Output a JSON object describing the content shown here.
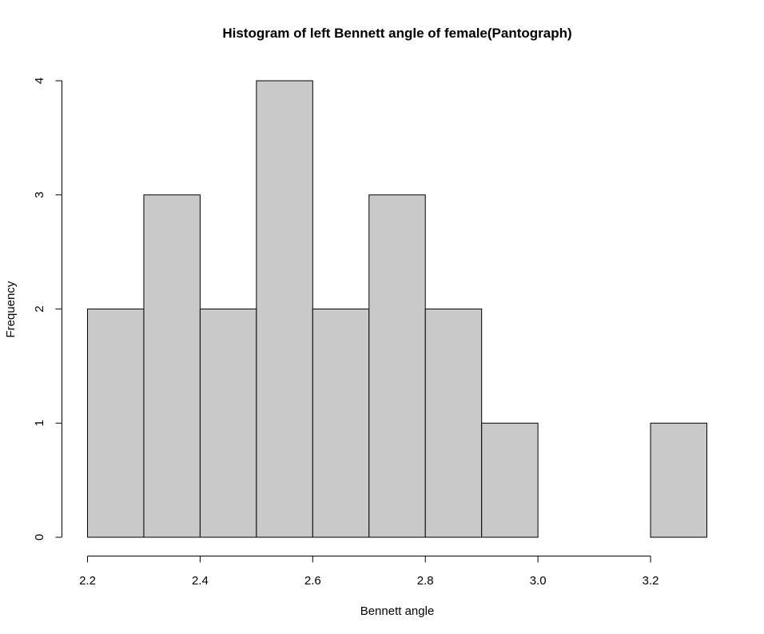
{
  "chart_data": {
    "type": "bar",
    "title": "Histogram of left Bennett angle of female(Pantograph)",
    "xlabel": "Bennett angle",
    "ylabel": "Frequency",
    "bins": [
      {
        "start": 2.2,
        "end": 2.3,
        "count": 2
      },
      {
        "start": 2.3,
        "end": 2.4,
        "count": 3
      },
      {
        "start": 2.4,
        "end": 2.5,
        "count": 2
      },
      {
        "start": 2.5,
        "end": 2.6,
        "count": 4
      },
      {
        "start": 2.6,
        "end": 2.7,
        "count": 2
      },
      {
        "start": 2.7,
        "end": 2.8,
        "count": 3
      },
      {
        "start": 2.8,
        "end": 2.9,
        "count": 2
      },
      {
        "start": 2.9,
        "end": 3.0,
        "count": 1
      },
      {
        "start": 3.0,
        "end": 3.1,
        "count": 0
      },
      {
        "start": 3.1,
        "end": 3.2,
        "count": 0
      },
      {
        "start": 3.2,
        "end": 3.3,
        "count": 1
      }
    ],
    "xlim": [
      2.2,
      3.3
    ],
    "ylim": [
      0,
      4
    ],
    "x_ticks": [
      "2.2",
      "2.4",
      "2.6",
      "2.8",
      "3.0",
      "3.2"
    ],
    "y_ticks": [
      "0",
      "1",
      "2",
      "3",
      "4"
    ],
    "bar_color": "#c9c9c9",
    "grid": false,
    "legend": "none"
  }
}
